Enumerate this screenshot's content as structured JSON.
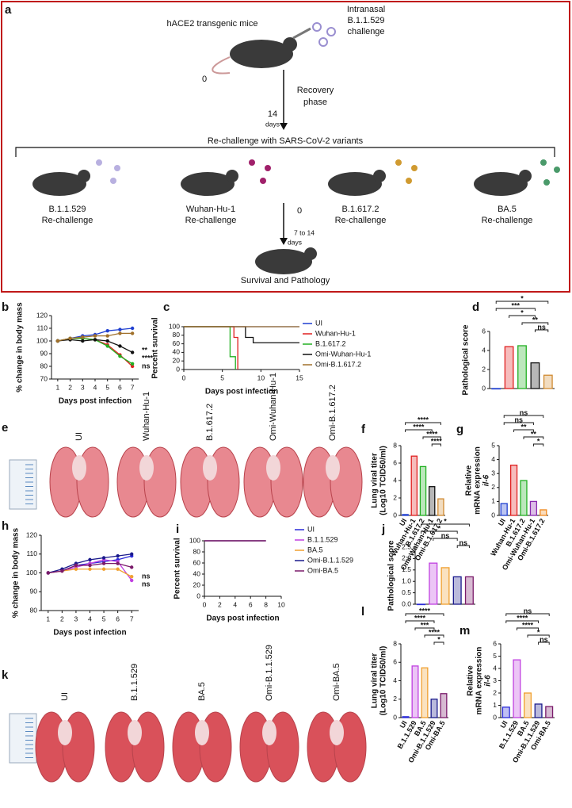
{
  "diagram": {
    "label": "a",
    "mouse_title": "hACE2 transgenic mice",
    "challenge": [
      "Intranasal",
      "B.1.1.529",
      "challenge"
    ],
    "day_start": "0",
    "recovery": [
      "Recovery",
      "phase"
    ],
    "day_end": [
      "14",
      "days"
    ],
    "rechallenge_title": "Re-challenge with SARS-CoV-2 variants",
    "groups": [
      [
        "B.1.1.529",
        "Re-challenge"
      ],
      [
        "Wuhan-Hu-1",
        "Re-challenge"
      ],
      [
        "B.1.617.2",
        "Re-challenge"
      ],
      [
        "BA.5",
        "Re-challenge"
      ]
    ],
    "day2_start": "0",
    "day2_end": [
      "7  to 14",
      "days"
    ],
    "outcome": "Survival and Pathology"
  },
  "photos": [
    {
      "label": "e",
      "captions": [
        "UI",
        "Wuhan-Hu-1",
        "B.1.617.2",
        "Omi-Wuhan-Hu-1",
        "Omi-B.1.617.2"
      ]
    },
    {
      "label": "k",
      "captions": [
        "UI",
        "B.1.1.529",
        "BA.5",
        "Omi-B.1.1.529",
        "Omi-BA.5"
      ]
    }
  ],
  "chart_data": [
    {
      "label": "b",
      "type": "line",
      "ylabel": "% change in body mass",
      "xlabel": "Days post infection",
      "x": [
        1,
        2,
        3,
        4,
        5,
        6,
        7
      ],
      "xlim": [
        0.5,
        7.5
      ],
      "xticks": [
        1,
        2,
        3,
        4,
        5,
        6,
        7
      ],
      "ylim": [
        70,
        120
      ],
      "yticks": [
        70,
        80,
        90,
        100,
        110,
        120
      ],
      "series": [
        {
          "name": "UI",
          "color": "#1f3fd0",
          "values": [
            100,
            102,
            104,
            105,
            108,
            109,
            110
          ]
        },
        {
          "name": "Wuhan-Hu-1",
          "color": "#e02020",
          "values": [
            100,
            102,
            102,
            101,
            97,
            89,
            80
          ]
        },
        {
          "name": "B.1.617.2",
          "color": "#22b022",
          "values": [
            100,
            102,
            102,
            101,
            96,
            88,
            82
          ]
        },
        {
          "name": "Omi-Wuhan-Hu-1",
          "color": "#111111",
          "values": [
            100,
            101,
            100,
            101,
            100,
            96,
            91
          ]
        },
        {
          "name": "Omi-B.1.617.2",
          "color": "#a0702a",
          "values": [
            100,
            102,
            103,
            104,
            104,
            106,
            106
          ]
        }
      ],
      "annotations": [
        "**",
        "****",
        "ns"
      ]
    },
    {
      "label": "c",
      "type": "step",
      "ylabel": "Percent survival",
      "xlabel": "Days post infection",
      "xlim": [
        0,
        15
      ],
      "xticks": [
        0,
        5,
        10,
        15
      ],
      "ylim": [
        0,
        100
      ],
      "yticks": [
        0,
        20,
        40,
        60,
        80,
        100
      ],
      "series": [
        {
          "name": "UI",
          "color": "#1f3fd0",
          "x": [
            0,
            15
          ],
          "values": [
            100,
            100
          ]
        },
        {
          "name": "Wuhan-Hu-1",
          "color": "#e02020",
          "x": [
            0,
            6.5,
            7
          ],
          "values": [
            100,
            75,
            0
          ]
        },
        {
          "name": "B.1.617.2",
          "color": "#22b022",
          "x": [
            0,
            6,
            6.7
          ],
          "values": [
            100,
            30,
            0
          ]
        },
        {
          "name": "Omi-Wuhan-Hu-1",
          "color": "#111111",
          "x": [
            0,
            8,
            9,
            15
          ],
          "values": [
            100,
            75,
            62.5,
            62.5
          ]
        },
        {
          "name": "Omi-B.1.617.2",
          "color": "#a0702a",
          "x": [
            0,
            15
          ],
          "values": [
            100,
            100
          ]
        }
      ]
    },
    {
      "label": "d",
      "type": "bar",
      "ylabel": "Pathological score",
      "values": [
        0,
        4.4,
        4.5,
        2.7,
        1.4
      ],
      "colors": [
        "#1f3fd0",
        "#e02020",
        "#22b022",
        "#111111",
        "#d08a30"
      ],
      "ylim": [
        0,
        6
      ],
      "yticks": [
        0,
        2,
        4,
        6
      ],
      "annotations": [
        "*",
        "***",
        "*",
        "**",
        "ns"
      ]
    },
    {
      "label": "f",
      "type": "bar",
      "ylabel": [
        "Lung viral titer",
        "(Log10 TCID50/ml)"
      ],
      "categories": [
        "UI",
        "Wuhan-Hu-1",
        "B.1.617.2",
        "Omi-Wuhan-Hu-1",
        "Omi-B.1.617.2"
      ],
      "values": [
        0.1,
        6.8,
        5.6,
        3.3,
        1.9
      ],
      "colors": [
        "#1f3fd0",
        "#e02020",
        "#22b022",
        "#111111",
        "#d08a30"
      ],
      "ylim": [
        0,
        8
      ],
      "yticks": [
        0,
        2,
        4,
        6,
        8
      ],
      "annotations": [
        "****",
        "****",
        "****",
        "****"
      ]
    },
    {
      "label": "g",
      "type": "bar",
      "ylabel": [
        "Relative",
        "mRNA expression",
        "il-6"
      ],
      "categories": [
        "UI",
        "Wuhan-Hu-1",
        "B.1.617.2",
        "Omi-Wuhan-Hu-1",
        "Omi-B.1.617.2"
      ],
      "values": [
        0.85,
        3.6,
        2.5,
        1.0,
        0.4
      ],
      "colors": [
        "#1f3fd0",
        "#e02020",
        "#22b022",
        "#8a2ab0",
        "#f08a20"
      ],
      "ylim": [
        0,
        5
      ],
      "yticks": [
        0,
        1,
        2,
        3,
        4,
        5
      ],
      "annotations": [
        "ns",
        "ns",
        "**",
        "**",
        "*"
      ]
    },
    {
      "label": "h",
      "type": "line",
      "ylabel": "% change in body mass",
      "xlabel": "Days post infection",
      "x": [
        1,
        2,
        3,
        4,
        5,
        6,
        7
      ],
      "xlim": [
        0.5,
        7.5
      ],
      "xticks": [
        1,
        2,
        3,
        4,
        5,
        6,
        7
      ],
      "ylim": [
        80,
        120
      ],
      "yticks": [
        80,
        90,
        100,
        110,
        120
      ],
      "series": [
        {
          "name": "UI",
          "color": "#2a2ad8",
          "values": [
            100,
            101,
            104,
            105,
            106,
            107,
            109
          ]
        },
        {
          "name": "B.1.1.529",
          "color": "#c040e0",
          "values": [
            100,
            101,
            103,
            105,
            107,
            106,
            96
          ]
        },
        {
          "name": "BA.5",
          "color": "#f0a030",
          "values": [
            100,
            101,
            102,
            102,
            102,
            102,
            98
          ]
        },
        {
          "name": "Omi-B.1.1.529",
          "color": "#1a1a8c",
          "values": [
            100,
            102,
            105,
            107,
            108,
            109,
            110
          ]
        },
        {
          "name": "Omi-BA.5",
          "color": "#7a1a6a",
          "values": [
            100,
            101,
            104,
            104,
            105,
            105,
            103
          ]
        }
      ],
      "annotations": [
        "ns",
        "ns"
      ]
    },
    {
      "label": "i",
      "type": "step",
      "ylabel": "Percent survival",
      "xlabel": "Days post infection",
      "xlim": [
        0,
        10
      ],
      "xticks": [
        0,
        2,
        4,
        6,
        8,
        10
      ],
      "ylim": [
        0,
        100
      ],
      "yticks": [
        0,
        20,
        40,
        60,
        80,
        100
      ],
      "series": [
        {
          "name": "UI",
          "color": "#2a2ad8",
          "x": [
            0,
            8
          ],
          "values": [
            100,
            100
          ]
        },
        {
          "name": "B.1.1.529",
          "color": "#c040e0",
          "x": [
            0,
            8
          ],
          "values": [
            100,
            100
          ]
        },
        {
          "name": "BA.5",
          "color": "#f0a030",
          "x": [
            0,
            8
          ],
          "values": [
            100,
            100
          ]
        },
        {
          "name": "Omi-B.1.1.529",
          "color": "#1a1a8c",
          "x": [
            0,
            8
          ],
          "values": [
            100,
            100
          ]
        },
        {
          "name": "Omi-BA.5",
          "color": "#7a1a6a",
          "x": [
            0,
            8
          ],
          "values": [
            100,
            100
          ]
        }
      ]
    },
    {
      "label": "j",
      "type": "bar",
      "ylabel": "Pathological score",
      "values": [
        0,
        1.8,
        1.6,
        1.2,
        1.2
      ],
      "colors": [
        "#2a2ad8",
        "#c040e0",
        "#f0a030",
        "#1a1a8c",
        "#7a1a6a"
      ],
      "ylim": [
        0,
        2.5
      ],
      "yticks": [
        {
          "value": 0,
          "label": "0.0"
        },
        0.5,
        {
          "value": 1,
          "label": "1.0"
        },
        1.5,
        {
          "value": 2,
          "label": "2.0"
        },
        2.5
      ],
      "annotations": [
        "*",
        "*",
        "ns",
        "ns"
      ]
    },
    {
      "label": "l",
      "type": "bar",
      "ylabel": [
        "Lung viral titer",
        "(Log10 TCID50/ml)"
      ],
      "categories": [
        "UI",
        "B.1.1.529",
        "BA.5",
        "Omi-B.1.1.529",
        "Omi-BA.5"
      ],
      "values": [
        0.1,
        5.6,
        5.4,
        2.0,
        2.6
      ],
      "colors": [
        "#2a2ad8",
        "#c040e0",
        "#f0a030",
        "#1a1a8c",
        "#7a1a6a"
      ],
      "ylim": [
        0,
        8
      ],
      "yticks": [
        0,
        2,
        4,
        6,
        8
      ],
      "annotations": [
        "****",
        "****",
        "***",
        "****",
        "*"
      ]
    },
    {
      "label": "m",
      "type": "bar",
      "ylabel": [
        "Relative",
        "mRNA expression",
        "il-6"
      ],
      "categories": [
        "UI",
        "B.1.1.529",
        "BA.5",
        "Omi-B.1.1.529",
        "Omi-BA.5"
      ],
      "values": [
        0.85,
        4.7,
        2.0,
        1.1,
        0.9
      ],
      "colors": [
        "#2a2ad8",
        "#c040e0",
        "#f0a030",
        "#1a1a8c",
        "#7a1a6a"
      ],
      "ylim": [
        0,
        6
      ],
      "yticks": [
        0,
        1,
        2,
        3,
        4,
        5,
        6
      ],
      "annotations": [
        "ns",
        "****",
        "****",
        "*",
        "ns"
      ]
    }
  ]
}
